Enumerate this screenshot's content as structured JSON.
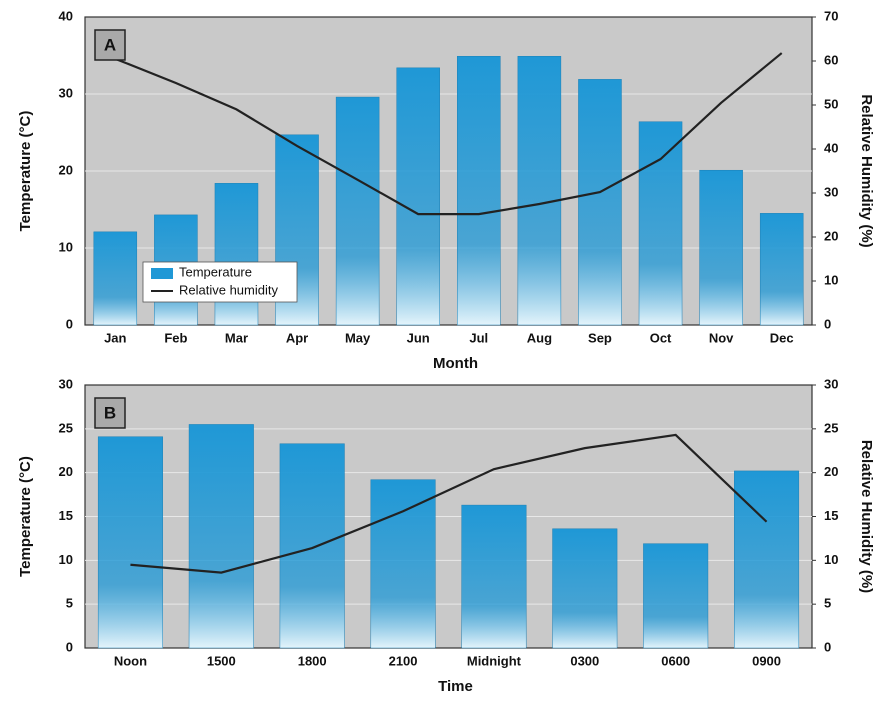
{
  "chart_data": [
    {
      "type": "bar_line",
      "panel_label": "A",
      "xlabel": "Month",
      "ylabel": "Temperature (°C)",
      "y2label": "Relative Humidity (%)",
      "categories": [
        "Jan",
        "Feb",
        "Mar",
        "Apr",
        "May",
        "Jun",
        "Jul",
        "Aug",
        "Sep",
        "Oct",
        "Nov",
        "Dec"
      ],
      "series": [
        {
          "name": "Temperature",
          "type": "bar",
          "color": "#1f98d6",
          "values": [
            12.1,
            14.3,
            18.4,
            24.7,
            29.6,
            33.4,
            34.9,
            34.9,
            31.9,
            26.4,
            20.1,
            14.5
          ]
        },
        {
          "name": "Relative humidity",
          "type": "line",
          "axis": "y2",
          "color": "#222222",
          "values": [
            60.5,
            55,
            49,
            40.7,
            33,
            25.2,
            25.2,
            27.5,
            30.2,
            37.7,
            50.5,
            61.8
          ]
        }
      ],
      "ylim": [
        0,
        40
      ],
      "yticks": [
        0,
        10,
        20,
        30,
        40
      ],
      "y2lim": [
        0,
        70
      ],
      "y2ticks": [
        0,
        10,
        20,
        30,
        40,
        50,
        60,
        70
      ],
      "grid": true,
      "legend": "lower left"
    },
    {
      "type": "bar_line",
      "panel_label": "B",
      "xlabel": "Time",
      "ylabel": "Temperature (°C)",
      "y2label": "Relative Humidity (%)",
      "categories": [
        "Noon",
        "1500",
        "1800",
        "2100",
        "Midnight",
        "0300",
        "0600",
        "0900"
      ],
      "series": [
        {
          "type": "bar",
          "color": "#1f98d6",
          "values": [
            24.1,
            25.5,
            23.3,
            19.2,
            16.3,
            13.6,
            11.9,
            20.2
          ]
        },
        {
          "type": "line",
          "axis": "y2",
          "color": "#222222",
          "values": [
            9.5,
            8.6,
            11.4,
            15.6,
            20.4,
            22.8,
            24.3,
            14.4
          ]
        }
      ],
      "ylim": [
        0,
        30
      ],
      "yticks": [
        0,
        5,
        10,
        15,
        20,
        25,
        30
      ],
      "y2lim": [
        0,
        30
      ],
      "y2ticks": [
        0,
        5,
        10,
        15,
        20,
        25,
        30
      ],
      "grid": true
    }
  ]
}
